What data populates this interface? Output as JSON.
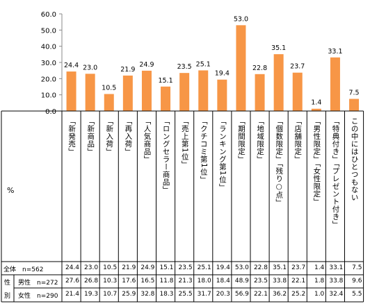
{
  "chart_data": {
    "type": "bar",
    "categories": [
      "「新発売」",
      "「新商品」",
      "「新入荷」",
      "「再入荷」",
      "「人気商品」",
      "「ロングセラー商品」",
      "「売上第1位」",
      "「クチコミ第1位」",
      "「ランキング第1位」",
      "「期間限定」",
      "「地域限定」",
      "「個数限定」「残り○点」",
      "「店舗限定」",
      "「男性限定」「女性限定」",
      "「特典付き」「プレゼント付き」",
      "この中にはひとつもない"
    ],
    "values": [
      24.4,
      23.0,
      10.5,
      21.9,
      24.9,
      15.1,
      23.5,
      25.1,
      19.4,
      53.0,
      22.8,
      35.1,
      23.7,
      1.4,
      33.1,
      7.5
    ],
    "ylim": [
      0,
      60
    ],
    "yticks": [
      "0.0",
      "10.0",
      "20.0",
      "30.0",
      "40.0",
      "50.0",
      "60.0"
    ],
    "bar_color": "#f79646",
    "grid": false
  },
  "table": {
    "pct_label": "%",
    "group_label_1": "性",
    "group_label_2": "別",
    "rows": [
      {
        "label": "全体　n=562",
        "values": [
          "24.4",
          "23.0",
          "10.5",
          "21.9",
          "24.9",
          "15.1",
          "23.5",
          "25.1",
          "19.4",
          "53.0",
          "22.8",
          "35.1",
          "23.7",
          "1.4",
          "33.1",
          "7.5"
        ]
      },
      {
        "label": "男性　n=272",
        "values": [
          "27.6",
          "26.8",
          "10.3",
          "17.6",
          "16.5",
          "11.8",
          "21.3",
          "18.0",
          "18.4",
          "48.9",
          "23.5",
          "33.8",
          "22.1",
          "1.8",
          "33.8",
          "9.6"
        ]
      },
      {
        "label": "女性　n=290",
        "values": [
          "21.4",
          "19.3",
          "10.7",
          "25.9",
          "32.8",
          "18.3",
          "25.5",
          "31.7",
          "20.3",
          "56.9",
          "22.1",
          "36.2",
          "25.2",
          "1.0",
          "32.4",
          "5.5"
        ]
      }
    ]
  }
}
